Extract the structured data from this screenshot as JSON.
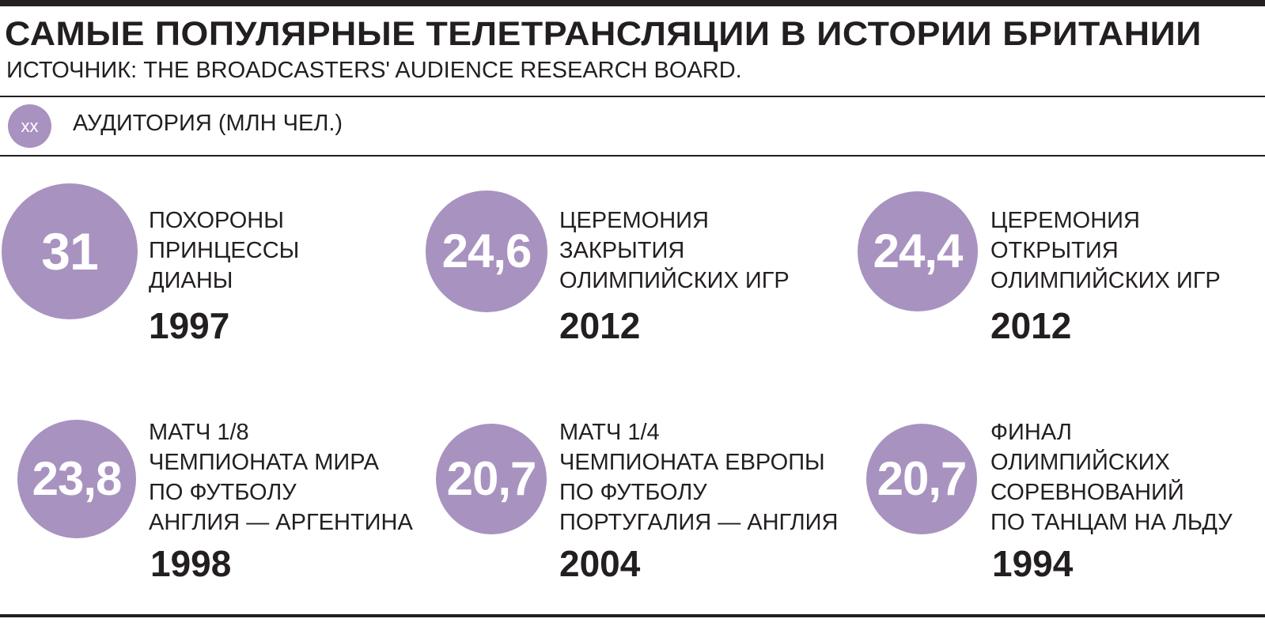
{
  "title": "САМЫЕ ПОПУЛЯРНЫЕ ТЕЛЕТРАНСЛЯЦИИ В ИСТОРИИ БРИТАНИИ",
  "source": "ИСТОЧНИК: THE BROADCASTERS' AUDIENCE RESEARCH BOARD.",
  "legend": {
    "swatch_text": "xx",
    "label": "АУДИТОРИЯ (МЛН ЧЕЛ.)"
  },
  "colors": {
    "bubble": "#a892c0",
    "text": "#231f20",
    "background": "#ffffff"
  },
  "chart_data": {
    "type": "bubble",
    "unit": "млн чел.",
    "items": [
      {
        "value": 31,
        "value_label": "31",
        "lines": [
          "ПОХОРОНЫ",
          "ПРИНЦЕССЫ",
          "ДИАНЫ"
        ],
        "year": "1997"
      },
      {
        "value": 24.6,
        "value_label": "24,6",
        "lines": [
          "ЦЕРЕМОНИЯ",
          "ЗАКРЫТИЯ",
          "ОЛИМПИЙСКИХ ИГР"
        ],
        "year": "2012"
      },
      {
        "value": 24.4,
        "value_label": "24,4",
        "lines": [
          "ЦЕРЕМОНИЯ",
          "ОТКРЫТИЯ",
          "ОЛИМПИЙСКИХ ИГР"
        ],
        "year": "2012"
      },
      {
        "value": 23.8,
        "value_label": "23,8",
        "lines": [
          "МАТЧ 1/8",
          "ЧЕМПИОНАТА МИРА",
          "ПО ФУТБОЛУ",
          "АНГЛИЯ — АРГЕНТИНА"
        ],
        "year": "1998"
      },
      {
        "value": 20.7,
        "value_label": "20,7",
        "lines": [
          "МАТЧ 1/4",
          "ЧЕМПИОНАТА ЕВРОПЫ",
          "ПО ФУТБОЛУ",
          "ПОРТУГАЛИЯ — АНГЛИЯ"
        ],
        "year": "2004"
      },
      {
        "value": 20.7,
        "value_label": "20,7",
        "lines": [
          "ФИНАЛ",
          "ОЛИМПИЙСКИХ",
          "СОРЕВНОВАНИЙ",
          "ПО ТАНЦАМ НА ЛЬДУ"
        ],
        "year": "1994"
      }
    ]
  }
}
